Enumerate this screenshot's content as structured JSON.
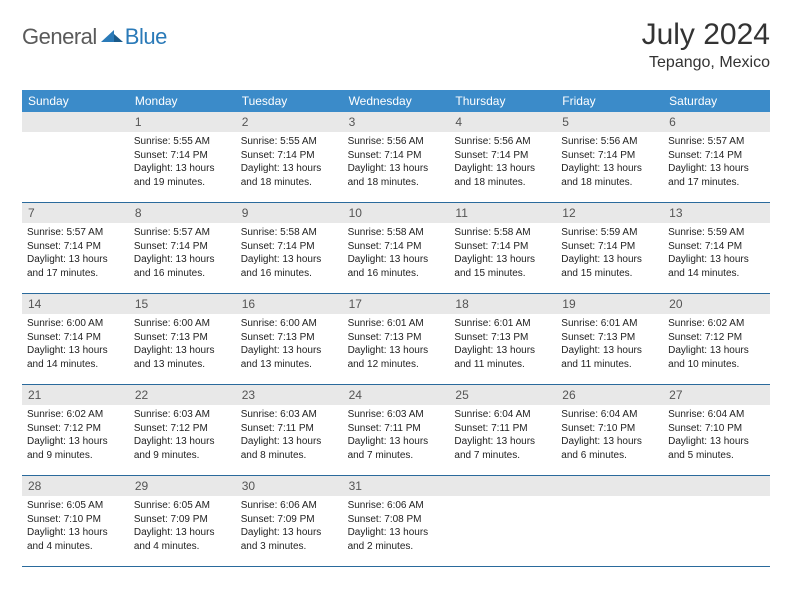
{
  "brand": {
    "text1": "General",
    "text2": "Blue"
  },
  "title": "July 2024",
  "location": "Tepango, Mexico",
  "colors": {
    "header_bg": "#3b8bc9",
    "header_text": "#ffffff",
    "daynum_bg": "#e8e8e8",
    "daynum_text": "#555555",
    "week_border": "#2a6a9c",
    "logo_gray": "#5a5a5a",
    "logo_blue": "#2a7ab8",
    "body_text": "#222222",
    "title_text": "#333333"
  },
  "weekdays": [
    "Sunday",
    "Monday",
    "Tuesday",
    "Wednesday",
    "Thursday",
    "Friday",
    "Saturday"
  ],
  "weeks": [
    [
      {
        "n": "",
        "sr": "",
        "ss": "",
        "dl": ""
      },
      {
        "n": "1",
        "sr": "Sunrise: 5:55 AM",
        "ss": "Sunset: 7:14 PM",
        "dl": "Daylight: 13 hours and 19 minutes."
      },
      {
        "n": "2",
        "sr": "Sunrise: 5:55 AM",
        "ss": "Sunset: 7:14 PM",
        "dl": "Daylight: 13 hours and 18 minutes."
      },
      {
        "n": "3",
        "sr": "Sunrise: 5:56 AM",
        "ss": "Sunset: 7:14 PM",
        "dl": "Daylight: 13 hours and 18 minutes."
      },
      {
        "n": "4",
        "sr": "Sunrise: 5:56 AM",
        "ss": "Sunset: 7:14 PM",
        "dl": "Daylight: 13 hours and 18 minutes."
      },
      {
        "n": "5",
        "sr": "Sunrise: 5:56 AM",
        "ss": "Sunset: 7:14 PM",
        "dl": "Daylight: 13 hours and 18 minutes."
      },
      {
        "n": "6",
        "sr": "Sunrise: 5:57 AM",
        "ss": "Sunset: 7:14 PM",
        "dl": "Daylight: 13 hours and 17 minutes."
      }
    ],
    [
      {
        "n": "7",
        "sr": "Sunrise: 5:57 AM",
        "ss": "Sunset: 7:14 PM",
        "dl": "Daylight: 13 hours and 17 minutes."
      },
      {
        "n": "8",
        "sr": "Sunrise: 5:57 AM",
        "ss": "Sunset: 7:14 PM",
        "dl": "Daylight: 13 hours and 16 minutes."
      },
      {
        "n": "9",
        "sr": "Sunrise: 5:58 AM",
        "ss": "Sunset: 7:14 PM",
        "dl": "Daylight: 13 hours and 16 minutes."
      },
      {
        "n": "10",
        "sr": "Sunrise: 5:58 AM",
        "ss": "Sunset: 7:14 PM",
        "dl": "Daylight: 13 hours and 16 minutes."
      },
      {
        "n": "11",
        "sr": "Sunrise: 5:58 AM",
        "ss": "Sunset: 7:14 PM",
        "dl": "Daylight: 13 hours and 15 minutes."
      },
      {
        "n": "12",
        "sr": "Sunrise: 5:59 AM",
        "ss": "Sunset: 7:14 PM",
        "dl": "Daylight: 13 hours and 15 minutes."
      },
      {
        "n": "13",
        "sr": "Sunrise: 5:59 AM",
        "ss": "Sunset: 7:14 PM",
        "dl": "Daylight: 13 hours and 14 minutes."
      }
    ],
    [
      {
        "n": "14",
        "sr": "Sunrise: 6:00 AM",
        "ss": "Sunset: 7:14 PM",
        "dl": "Daylight: 13 hours and 14 minutes."
      },
      {
        "n": "15",
        "sr": "Sunrise: 6:00 AM",
        "ss": "Sunset: 7:13 PM",
        "dl": "Daylight: 13 hours and 13 minutes."
      },
      {
        "n": "16",
        "sr": "Sunrise: 6:00 AM",
        "ss": "Sunset: 7:13 PM",
        "dl": "Daylight: 13 hours and 13 minutes."
      },
      {
        "n": "17",
        "sr": "Sunrise: 6:01 AM",
        "ss": "Sunset: 7:13 PM",
        "dl": "Daylight: 13 hours and 12 minutes."
      },
      {
        "n": "18",
        "sr": "Sunrise: 6:01 AM",
        "ss": "Sunset: 7:13 PM",
        "dl": "Daylight: 13 hours and 11 minutes."
      },
      {
        "n": "19",
        "sr": "Sunrise: 6:01 AM",
        "ss": "Sunset: 7:13 PM",
        "dl": "Daylight: 13 hours and 11 minutes."
      },
      {
        "n": "20",
        "sr": "Sunrise: 6:02 AM",
        "ss": "Sunset: 7:12 PM",
        "dl": "Daylight: 13 hours and 10 minutes."
      }
    ],
    [
      {
        "n": "21",
        "sr": "Sunrise: 6:02 AM",
        "ss": "Sunset: 7:12 PM",
        "dl": "Daylight: 13 hours and 9 minutes."
      },
      {
        "n": "22",
        "sr": "Sunrise: 6:03 AM",
        "ss": "Sunset: 7:12 PM",
        "dl": "Daylight: 13 hours and 9 minutes."
      },
      {
        "n": "23",
        "sr": "Sunrise: 6:03 AM",
        "ss": "Sunset: 7:11 PM",
        "dl": "Daylight: 13 hours and 8 minutes."
      },
      {
        "n": "24",
        "sr": "Sunrise: 6:03 AM",
        "ss": "Sunset: 7:11 PM",
        "dl": "Daylight: 13 hours and 7 minutes."
      },
      {
        "n": "25",
        "sr": "Sunrise: 6:04 AM",
        "ss": "Sunset: 7:11 PM",
        "dl": "Daylight: 13 hours and 7 minutes."
      },
      {
        "n": "26",
        "sr": "Sunrise: 6:04 AM",
        "ss": "Sunset: 7:10 PM",
        "dl": "Daylight: 13 hours and 6 minutes."
      },
      {
        "n": "27",
        "sr": "Sunrise: 6:04 AM",
        "ss": "Sunset: 7:10 PM",
        "dl": "Daylight: 13 hours and 5 minutes."
      }
    ],
    [
      {
        "n": "28",
        "sr": "Sunrise: 6:05 AM",
        "ss": "Sunset: 7:10 PM",
        "dl": "Daylight: 13 hours and 4 minutes."
      },
      {
        "n": "29",
        "sr": "Sunrise: 6:05 AM",
        "ss": "Sunset: 7:09 PM",
        "dl": "Daylight: 13 hours and 4 minutes."
      },
      {
        "n": "30",
        "sr": "Sunrise: 6:06 AM",
        "ss": "Sunset: 7:09 PM",
        "dl": "Daylight: 13 hours and 3 minutes."
      },
      {
        "n": "31",
        "sr": "Sunrise: 6:06 AM",
        "ss": "Sunset: 7:08 PM",
        "dl": "Daylight: 13 hours and 2 minutes."
      },
      {
        "n": "",
        "sr": "",
        "ss": "",
        "dl": ""
      },
      {
        "n": "",
        "sr": "",
        "ss": "",
        "dl": ""
      },
      {
        "n": "",
        "sr": "",
        "ss": "",
        "dl": ""
      }
    ]
  ]
}
